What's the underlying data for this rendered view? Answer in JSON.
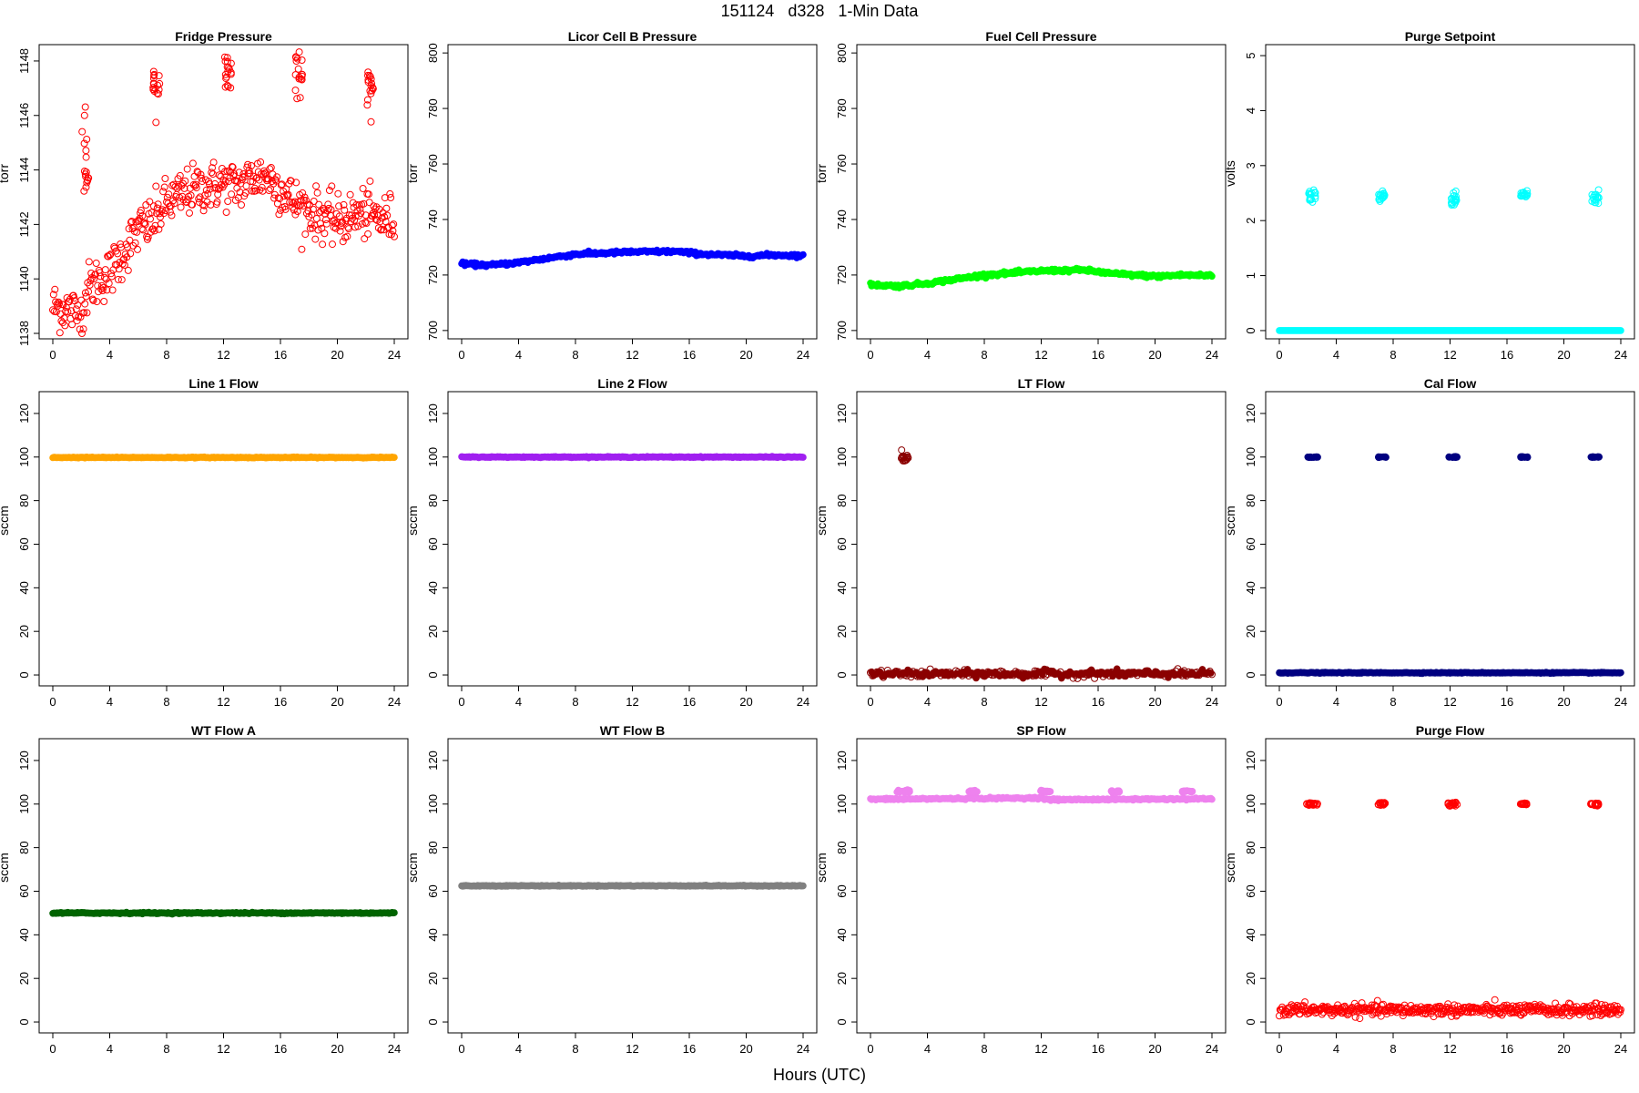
{
  "page": {
    "title": "151124   d328   1-Min Data",
    "xlabel": "Hours (UTC)"
  },
  "chart_data": [
    {
      "id": "fridge-pressure",
      "type": "scatter",
      "title": "Fridge Pressure",
      "ylabel": "torr",
      "color": "#ff0000",
      "marker": "open-circle",
      "xlim": [
        0,
        24
      ],
      "ylim": [
        1137.8,
        1148.6
      ],
      "xticks": [
        0,
        4,
        8,
        12,
        16,
        20,
        24
      ],
      "yticks": [
        1138,
        1140,
        1142,
        1144,
        1146,
        1148
      ],
      "trend": [
        [
          0,
          1139.0
        ],
        [
          1,
          1138.9
        ],
        [
          2,
          1138.7
        ],
        [
          2.5,
          1139.7
        ],
        [
          4,
          1140.2
        ],
        [
          5,
          1141.0
        ],
        [
          6,
          1141.8
        ],
        [
          7,
          1142.1
        ],
        [
          8,
          1142.8
        ],
        [
          10,
          1143.3
        ],
        [
          12,
          1143.5
        ],
        [
          13,
          1143.4
        ],
        [
          14,
          1143.7
        ],
        [
          15,
          1143.8
        ],
        [
          16,
          1143.3
        ],
        [
          17,
          1142.8
        ],
        [
          18,
          1142.5
        ],
        [
          19,
          1142.3
        ],
        [
          20,
          1142.1
        ],
        [
          21,
          1142.3
        ],
        [
          22,
          1142.4
        ],
        [
          23,
          1142.2
        ],
        [
          24,
          1142.2
        ]
      ],
      "spread": 0.45,
      "clusters": [
        {
          "x": 2.3,
          "y": 1144.5,
          "spread": 0.9
        },
        {
          "x": 7.3,
          "y": 1147.1,
          "spread": 0.4
        },
        {
          "x": 12.3,
          "y": 1147.8,
          "spread": 0.4
        },
        {
          "x": 17.3,
          "y": 1147.5,
          "spread": 0.4
        },
        {
          "x": 22.3,
          "y": 1147.1,
          "spread": 0.4
        }
      ]
    },
    {
      "id": "licor-cell-b-pressure",
      "type": "scatter",
      "title": "Licor Cell B Pressure",
      "ylabel": "torr",
      "color": "#0000ff",
      "marker": "filled",
      "xlim": [
        0,
        24
      ],
      "ylim": [
        697,
        803
      ],
      "xticks": [
        0,
        4,
        8,
        12,
        16,
        20,
        24
      ],
      "yticks": [
        700,
        720,
        740,
        760,
        780,
        800
      ],
      "trend": [
        [
          0,
          724
        ],
        [
          2,
          723.5
        ],
        [
          4,
          724.5
        ],
        [
          6,
          726
        ],
        [
          8,
          727.5
        ],
        [
          12,
          728.3
        ],
        [
          15,
          728.5
        ],
        [
          17,
          727.5
        ],
        [
          20,
          726.8
        ],
        [
          22,
          727.2
        ],
        [
          24,
          727
        ]
      ],
      "spread": 0.3,
      "clusters": []
    },
    {
      "id": "fuel-cell-pressure",
      "type": "scatter",
      "title": "Fuel Cell Pressure",
      "ylabel": "torr",
      "color": "#00ff00",
      "marker": "filled",
      "xlim": [
        0,
        24
      ],
      "ylim": [
        697,
        803
      ],
      "xticks": [
        0,
        4,
        8,
        12,
        16,
        20,
        24
      ],
      "yticks": [
        700,
        720,
        740,
        760,
        780,
        800
      ],
      "trend": [
        [
          0,
          716.5
        ],
        [
          2,
          716
        ],
        [
          4,
          717
        ],
        [
          6,
          718.5
        ],
        [
          8,
          720
        ],
        [
          12,
          721.5
        ],
        [
          15,
          721.8
        ],
        [
          17,
          720.5
        ],
        [
          20,
          719.5
        ],
        [
          22,
          720
        ],
        [
          24,
          719.8
        ]
      ],
      "spread": 0.3,
      "clusters": []
    },
    {
      "id": "purge-setpoint",
      "type": "scatter",
      "title": "Purge Setpoint",
      "ylabel": "volts",
      "color": "#00ffff",
      "marker": "filled",
      "xlim": [
        0,
        24
      ],
      "ylim": [
        -0.15,
        5.2
      ],
      "xticks": [
        0,
        4,
        8,
        12,
        16,
        20,
        24
      ],
      "yticks": [
        0,
        1,
        2,
        3,
        4,
        5
      ],
      "trend": [
        [
          0,
          0
        ],
        [
          24,
          0
        ]
      ],
      "spread": 0.0,
      "clusters": [
        {
          "x": 2.3,
          "y": 2.45,
          "spread": 0.06,
          "open": true
        },
        {
          "x": 7.2,
          "y": 2.45,
          "spread": 0.05,
          "open": true
        },
        {
          "x": 12.2,
          "y": 2.42,
          "spread": 0.06,
          "open": true
        },
        {
          "x": 17.2,
          "y": 2.46,
          "spread": 0.04,
          "open": true
        },
        {
          "x": 22.2,
          "y": 2.43,
          "spread": 0.06,
          "open": true
        }
      ]
    },
    {
      "id": "line-1-flow",
      "type": "scatter",
      "title": "Line 1 Flow",
      "ylabel": "sccm",
      "color": "#ffa500",
      "marker": "filled",
      "xlim": [
        0,
        24
      ],
      "ylim": [
        -5,
        130
      ],
      "xticks": [
        0,
        4,
        8,
        12,
        16,
        20,
        24
      ],
      "yticks": [
        0,
        20,
        40,
        60,
        80,
        100,
        120
      ],
      "trend": [
        [
          0,
          99.8
        ],
        [
          24,
          99.8
        ]
      ],
      "spread": 0.1,
      "clusters": []
    },
    {
      "id": "line-2-flow",
      "type": "scatter",
      "title": "Line 2 Flow",
      "ylabel": "sccm",
      "color": "#a020f0",
      "marker": "filled",
      "xlim": [
        0,
        24
      ],
      "ylim": [
        -5,
        130
      ],
      "xticks": [
        0,
        4,
        8,
        12,
        16,
        20,
        24
      ],
      "yticks": [
        0,
        20,
        40,
        60,
        80,
        100,
        120
      ],
      "trend": [
        [
          0,
          100
        ],
        [
          24,
          100
        ]
      ],
      "spread": 0.1,
      "clusters": []
    },
    {
      "id": "lt-flow",
      "type": "scatter",
      "title": "LT Flow",
      "ylabel": "sccm",
      "color": "#8b0000",
      "marker": "mixed",
      "xlim": [
        0,
        24
      ],
      "ylim": [
        -5,
        130
      ],
      "xticks": [
        0,
        4,
        8,
        12,
        16,
        20,
        24
      ],
      "yticks": [
        0,
        20,
        40,
        60,
        80,
        100,
        120
      ],
      "trend": [
        [
          0,
          0.5
        ],
        [
          24,
          0.5
        ]
      ],
      "spread": 0.8,
      "clusters": [
        {
          "x": 2.4,
          "y": 99.8,
          "spread": 1.0
        }
      ]
    },
    {
      "id": "cal-flow",
      "type": "scatter",
      "title": "Cal Flow",
      "ylabel": "sccm",
      "color": "#000080",
      "marker": "filled",
      "xlim": [
        0,
        24
      ],
      "ylim": [
        -5,
        130
      ],
      "xticks": [
        0,
        4,
        8,
        12,
        16,
        20,
        24
      ],
      "yticks": [
        0,
        20,
        40,
        60,
        80,
        100,
        120
      ],
      "trend": [
        [
          0,
          1
        ],
        [
          24,
          1
        ]
      ],
      "spread": 0.1,
      "clusters": [
        {
          "x": 2.4,
          "y": 100,
          "spread": 0.1,
          "width": 0.8
        },
        {
          "x": 7.2,
          "y": 100,
          "spread": 0.1,
          "width": 0.6
        },
        {
          "x": 12.2,
          "y": 100,
          "spread": 0.1,
          "width": 0.6
        },
        {
          "x": 17.2,
          "y": 100,
          "spread": 0.1,
          "width": 0.5
        },
        {
          "x": 22.2,
          "y": 100,
          "spread": 0.1,
          "width": 0.6
        }
      ]
    },
    {
      "id": "wt-flow-a",
      "type": "scatter",
      "title": "WT Flow A",
      "ylabel": "sccm",
      "color": "#006400",
      "marker": "filled",
      "xlim": [
        0,
        24
      ],
      "ylim": [
        -5,
        130
      ],
      "xticks": [
        0,
        4,
        8,
        12,
        16,
        20,
        24
      ],
      "yticks": [
        0,
        20,
        40,
        60,
        80,
        100,
        120
      ],
      "trend": [
        [
          0,
          50
        ],
        [
          24,
          50
        ]
      ],
      "spread": 0.15,
      "clusters": []
    },
    {
      "id": "wt-flow-b",
      "type": "scatter",
      "title": "WT Flow B",
      "ylabel": "sccm",
      "color": "#808080",
      "marker": "filled",
      "xlim": [
        0,
        24
      ],
      "ylim": [
        -5,
        130
      ],
      "xticks": [
        0,
        4,
        8,
        12,
        16,
        20,
        24
      ],
      "yticks": [
        0,
        20,
        40,
        60,
        80,
        100,
        120
      ],
      "trend": [
        [
          0,
          62.5
        ],
        [
          24,
          62.5
        ]
      ],
      "spread": 0.1,
      "clusters": []
    },
    {
      "id": "sp-flow",
      "type": "scatter",
      "title": "SP Flow",
      "ylabel": "sccm",
      "color": "#ee82ee",
      "marker": "filled",
      "xlim": [
        0,
        24
      ],
      "ylim": [
        -5,
        130
      ],
      "xticks": [
        0,
        4,
        8,
        12,
        16,
        20,
        24
      ],
      "yticks": [
        0,
        20,
        40,
        60,
        80,
        100,
        120
      ],
      "trend": [
        [
          0,
          102.2
        ],
        [
          12,
          102.8
        ],
        [
          12.5,
          102
        ],
        [
          24,
          102.4
        ]
      ],
      "spread": 0.2,
      "clusters": [
        {
          "x": 2.3,
          "y": 105.8,
          "spread": 0.2,
          "width": 0.9
        },
        {
          "x": 7.2,
          "y": 105.8,
          "spread": 0.2,
          "width": 0.6
        },
        {
          "x": 12.3,
          "y": 105.8,
          "spread": 0.2,
          "width": 0.8
        },
        {
          "x": 17.2,
          "y": 105.8,
          "spread": 0.2,
          "width": 0.6
        },
        {
          "x": 22.3,
          "y": 105.8,
          "spread": 0.2,
          "width": 0.8
        }
      ]
    },
    {
      "id": "purge-flow",
      "type": "scatter",
      "title": "Purge Flow",
      "ylabel": "sccm",
      "color": "#ff0000",
      "marker": "open-circle",
      "xlim": [
        0,
        24
      ],
      "ylim": [
        -5,
        130
      ],
      "xticks": [
        0,
        4,
        8,
        12,
        16,
        20,
        24
      ],
      "yticks": [
        0,
        20,
        40,
        60,
        80,
        100,
        120
      ],
      "trend": [
        [
          0,
          5.5
        ],
        [
          24,
          5.5
        ]
      ],
      "spread": 1.3,
      "clusters": [
        {
          "x": 2.3,
          "y": 100,
          "spread": 0.4,
          "width": 0.8
        },
        {
          "x": 7.2,
          "y": 100,
          "spread": 0.4,
          "width": 0.5
        },
        {
          "x": 12.2,
          "y": 100,
          "spread": 0.4,
          "width": 0.7
        },
        {
          "x": 17.2,
          "y": 100,
          "spread": 0.3,
          "width": 0.5
        },
        {
          "x": 22.2,
          "y": 100,
          "spread": 0.4,
          "width": 0.7
        }
      ]
    }
  ]
}
